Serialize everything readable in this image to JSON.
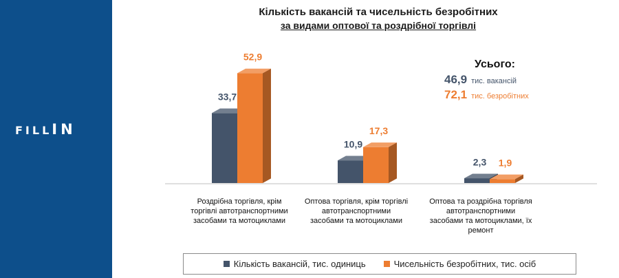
{
  "brand": {
    "logo_small": "FILL",
    "logo_big": "IN"
  },
  "chart_data": {
    "type": "bar",
    "title": "Кількість вакансій та чисельність безробітних",
    "subtitle": "за видами оптової та роздрібної торгівлі",
    "categories": [
      "Роздрібна торгівля, крім торгівлі автотранспортними засобами та мотоциклами",
      "Оптова торгівля, крім торгівлі автотранспортними засобами та мотоциклами",
      "Оптова та роздрібна торгівля автотранспортними засобами та мотоциклами, їх ремонт"
    ],
    "category_lines": [
      [
        "Роздрібна торгівля, крім",
        "торгівлі автотранспортними",
        "засобами та мотоциклами"
      ],
      [
        "Оптова торгівля, крім торгівлі",
        "автотранспортними",
        "засобами та мотоциклами"
      ],
      [
        "Оптова та роздрібна торгівля",
        "автотранспортними",
        "засобами та мотоциклами, їх",
        "ремонт"
      ]
    ],
    "series": [
      {
        "name": "Кількість вакансій, тис. одиниць",
        "values": [
          33.7,
          10.9,
          2.3
        ],
        "labels": [
          "33,7",
          "10,9",
          "2,3"
        ],
        "color": "#44546a",
        "label_color": "#44546a"
      },
      {
        "name": "Чисельність безробітних, тис. осіб",
        "values": [
          52.9,
          17.3,
          1.9
        ],
        "labels": [
          "52,9",
          "17,3",
          "1,9"
        ],
        "color": "#ed7d31",
        "label_color": "#ed7d31"
      }
    ],
    "ylim": [
      0,
      55
    ],
    "legend_position": "bottom",
    "grid": false
  },
  "totals": {
    "heading": "Усього:",
    "vacancies": {
      "value": "46,9",
      "unit": "тис. вакансій",
      "color": "#44546a"
    },
    "unemployed": {
      "value": "72,1",
      "unit": "тис. безробітних",
      "color": "#ed7d31"
    }
  }
}
